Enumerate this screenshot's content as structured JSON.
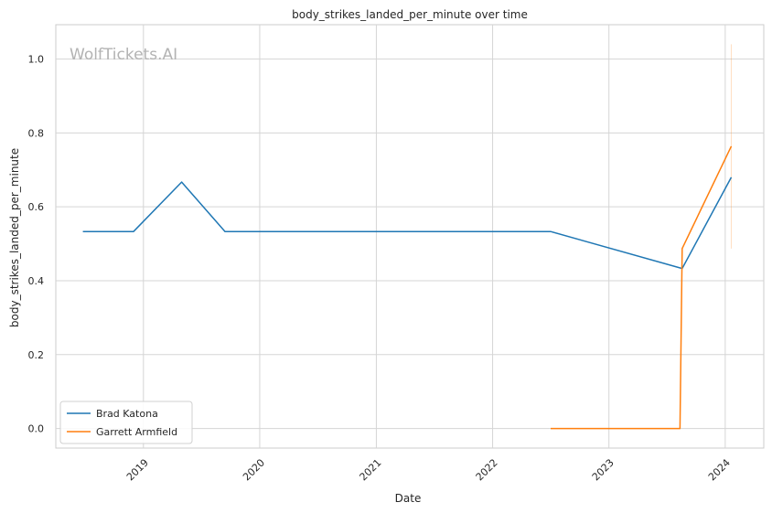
{
  "chart_data": {
    "type": "line",
    "title": "body_strikes_landed_per_minute over time",
    "xlabel": "Date",
    "ylabel": "body_strikes_landed_per_minute",
    "watermark": "WolfTickets.AI",
    "xlim": [
      "2018-04-01",
      "2024-05-01"
    ],
    "ylim": [
      -0.053,
      1.093
    ],
    "x_ticks": [
      "2019",
      "2020",
      "2021",
      "2022",
      "2023",
      "2024"
    ],
    "y_ticks": [
      "0.0",
      "0.2",
      "0.4",
      "0.6",
      "0.8",
      "1.0"
    ],
    "y_tick_values": [
      0.0,
      0.2,
      0.4,
      0.6,
      0.8,
      1.0
    ],
    "grid": true,
    "legend_position": "lower-left",
    "series": [
      {
        "name": "Brad Katona",
        "color": "#1f77b4",
        "x": [
          "2018-06-25",
          "2018-12-01",
          "2019-05-01",
          "2019-09-14",
          "2022-07-02",
          "2023-08-19",
          "2024-01-20"
        ],
        "y": [
          0.533,
          0.533,
          0.667,
          0.533,
          0.533,
          0.433,
          0.68
        ]
      },
      {
        "name": "Garrett Armfield",
        "color": "#ff7f0e",
        "x": [
          "2022-07-02",
          "2023-08-12",
          "2023-08-19",
          "2024-01-20"
        ],
        "y": [
          0.0,
          0.0,
          0.487,
          0.764
        ]
      }
    ],
    "annotations": [
      {
        "type": "error_bar",
        "x": "2024-01-20",
        "y_range": [
          0.487,
          1.04
        ],
        "color": "#ff7f0e"
      }
    ]
  }
}
